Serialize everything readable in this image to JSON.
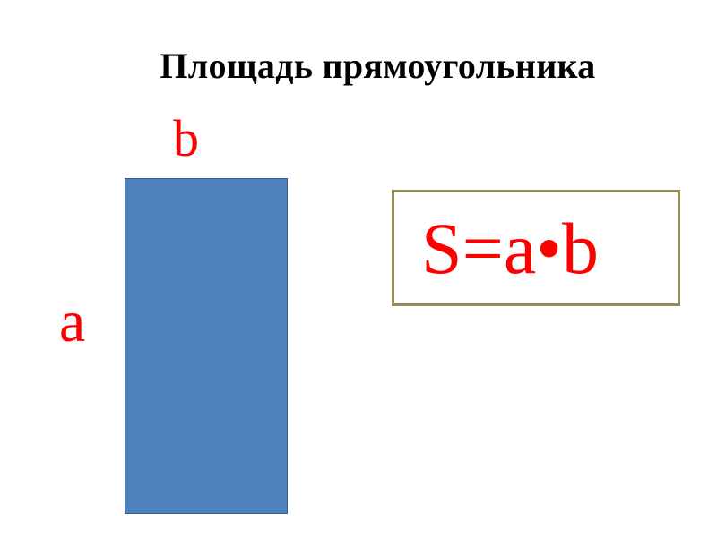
{
  "title": "Площадь прямоугольника",
  "labels": {
    "side_b": "b",
    "side_a": "a"
  },
  "formula": "S=a•b",
  "colors": {
    "rectangle_fill": "#4f81bd",
    "label_color": "#ff0000",
    "formula_border": "#948a54"
  }
}
